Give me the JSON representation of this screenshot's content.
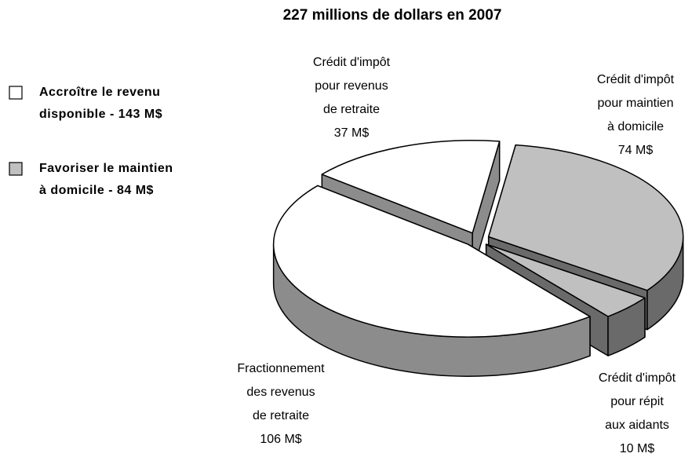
{
  "chart_data": {
    "type": "pie",
    "title": "227 millions de dollars en 2007",
    "categories": [
      [
        "Crédit d'impôt",
        "pour maintien",
        "à domicile"
      ],
      [
        "Crédit d'impôt",
        "pour répit",
        "aux aidants"
      ],
      [
        "Fractionnement",
        "des revenus",
        "de retraite"
      ],
      [
        "Crédit d'impôt",
        "pour revenus",
        "de retraite"
      ]
    ],
    "values": [
      74,
      10,
      106,
      37
    ],
    "value_labels": [
      "74 M$",
      "10 M$",
      "106 M$",
      "37 M$"
    ],
    "colors": [
      "#c0c0c0",
      "#c0c0c0",
      "#ffffff",
      "#ffffff"
    ],
    "legend": [
      {
        "name": [
          "Accroître le revenu",
          "disponible - 143 M$"
        ],
        "color": "#ffffff"
      },
      {
        "name": [
          "Favoriser le maintien",
          "à domicile - 84 M$"
        ],
        "color": "#c0c0c0"
      }
    ]
  }
}
